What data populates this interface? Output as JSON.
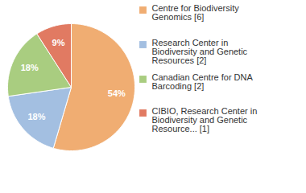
{
  "chart_data": {
    "type": "pie",
    "categories": [
      "Centre for Biodiversity Genomics [6]",
      "Research Center in Biodiversity and Genetic Resources [2]",
      "Canadian Centre for DNA Barcoding [2]",
      "CIBIO, Research Center in Biodiversity and Genetic Resource... [1]"
    ],
    "values": [
      54,
      18,
      18,
      9
    ],
    "value_labels": [
      "54%",
      "18%",
      "18%",
      "9%"
    ],
    "colors": [
      "#f0ad72",
      "#a3bfe1",
      "#a9cd80",
      "#e17a62"
    ],
    "data_labels": true,
    "legend": "right"
  }
}
